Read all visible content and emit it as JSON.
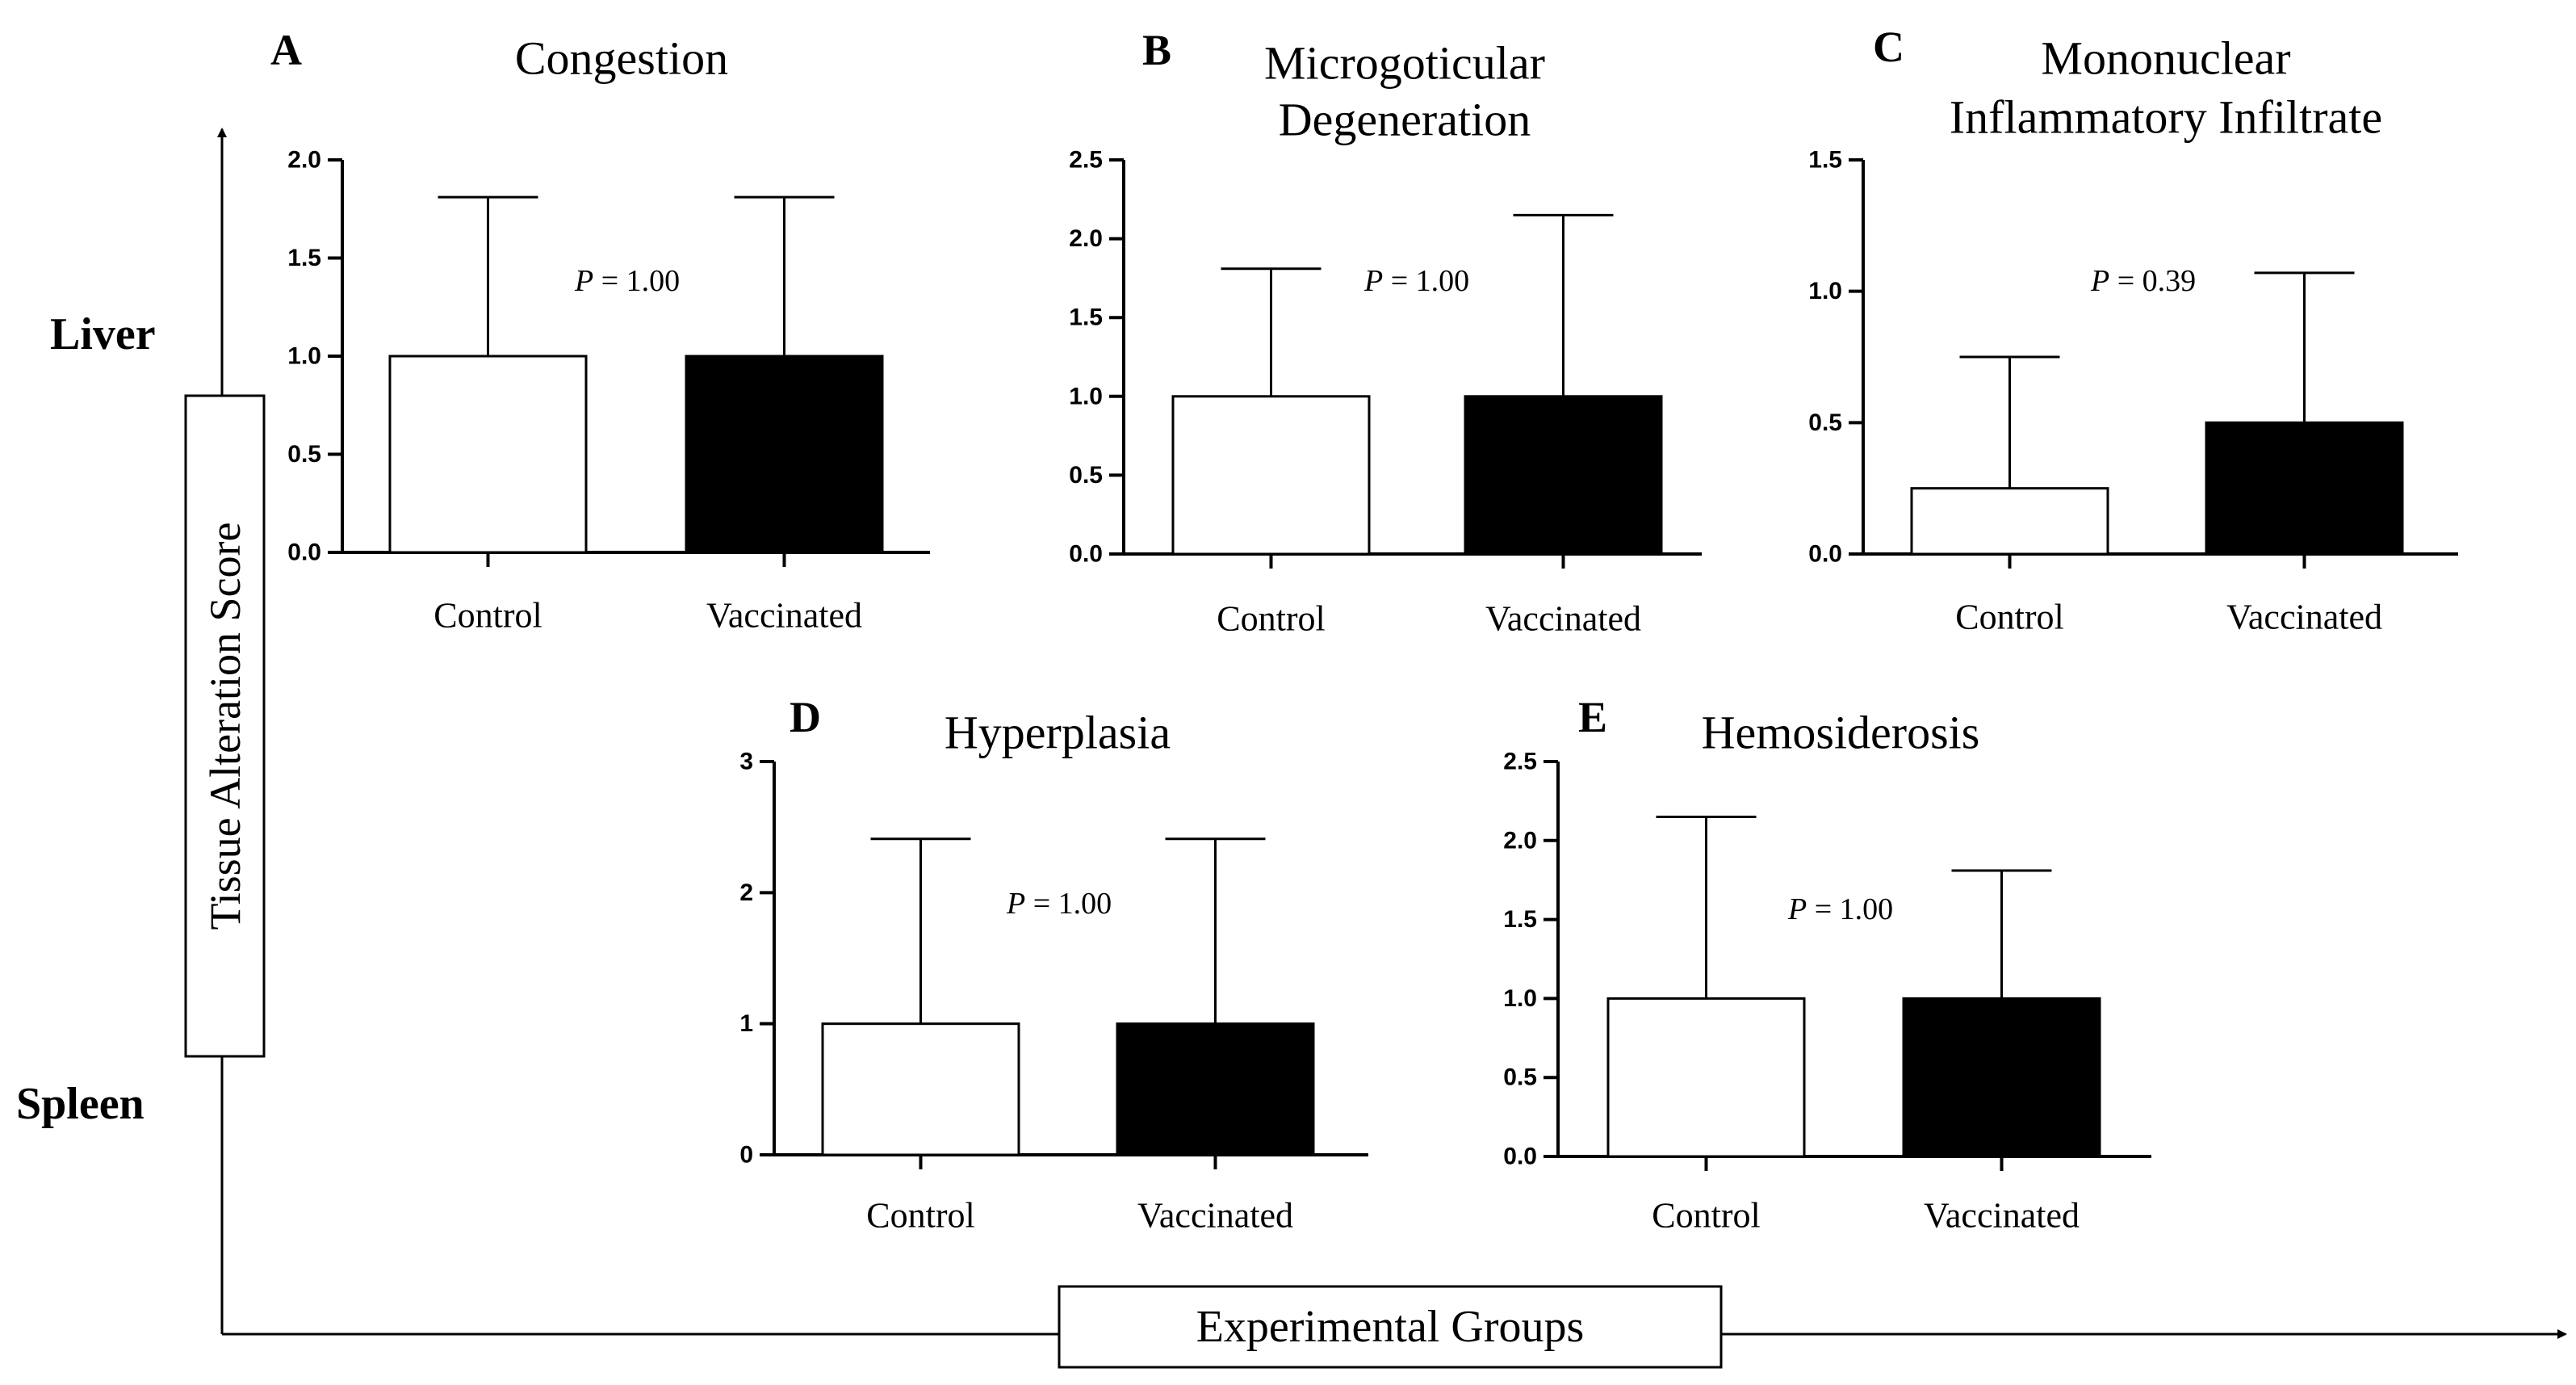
{
  "figure": {
    "row_label_top": "Liver",
    "row_label_bottom": "Spleen",
    "y_axis_title": "Tissue Alteration Score",
    "x_axis_title": "Experimental Groups"
  },
  "chart_data": [
    {
      "panel": "A",
      "type": "bar",
      "title": [
        "Congestion"
      ],
      "categories": [
        "Control",
        "Vaccinated"
      ],
      "values": [
        1.0,
        1.0
      ],
      "error_upper": [
        1.81,
        1.81
      ],
      "ylim": [
        0,
        2.0
      ],
      "yticks": [
        "0.0",
        "0.5",
        "1.0",
        "1.5",
        "2.0"
      ],
      "p_label": "P",
      "p_text": " = 1.00",
      "bar_colors": [
        "#ffffff",
        "#000000"
      ]
    },
    {
      "panel": "B",
      "type": "bar",
      "title": [
        "Microgoticular",
        "Degeneration"
      ],
      "categories": [
        "Control",
        "Vaccinated"
      ],
      "values": [
        1.0,
        1.0
      ],
      "error_upper": [
        1.81,
        2.15
      ],
      "ylim": [
        0,
        2.5
      ],
      "yticks": [
        "0.0",
        "0.5",
        "1.0",
        "1.5",
        "2.0",
        "2.5"
      ],
      "p_label": "P",
      "p_text": " = 1.00",
      "bar_colors": [
        "#ffffff",
        "#000000"
      ]
    },
    {
      "panel": "C",
      "type": "bar",
      "title": [
        "Mononuclear",
        "Inflammatory Infiltrate"
      ],
      "categories": [
        "Control",
        "Vaccinated"
      ],
      "values": [
        0.25,
        0.5
      ],
      "error_upper": [
        0.75,
        1.07
      ],
      "ylim": [
        0,
        1.5
      ],
      "yticks": [
        "0.0",
        "0.5",
        "1.0",
        "1.5"
      ],
      "p_label": "P",
      "p_text": " = 0.39",
      "bar_colors": [
        "#ffffff",
        "#000000"
      ]
    },
    {
      "panel": "D",
      "type": "bar",
      "title": [
        "Hyperplasia"
      ],
      "categories": [
        "Control",
        "Vaccinated"
      ],
      "values": [
        1.0,
        1.0
      ],
      "error_upper": [
        2.41,
        2.41
      ],
      "ylim": [
        0,
        3
      ],
      "yticks": [
        "0",
        "1",
        "2",
        "3"
      ],
      "p_label": "P",
      "p_text": " = 1.00",
      "bar_colors": [
        "#ffffff",
        "#000000"
      ]
    },
    {
      "panel": "E",
      "type": "bar",
      "title": [
        "Hemosiderosis"
      ],
      "categories": [
        "Control",
        "Vaccinated"
      ],
      "values": [
        1.0,
        1.0
      ],
      "error_upper": [
        2.15,
        1.81
      ],
      "ylim": [
        0,
        2.5
      ],
      "yticks": [
        "0.0",
        "0.5",
        "1.0",
        "1.5",
        "2.0",
        "2.5"
      ],
      "p_label": "P",
      "p_text": " = 1.00",
      "bar_colors": [
        "#ffffff",
        "#000000"
      ]
    }
  ]
}
